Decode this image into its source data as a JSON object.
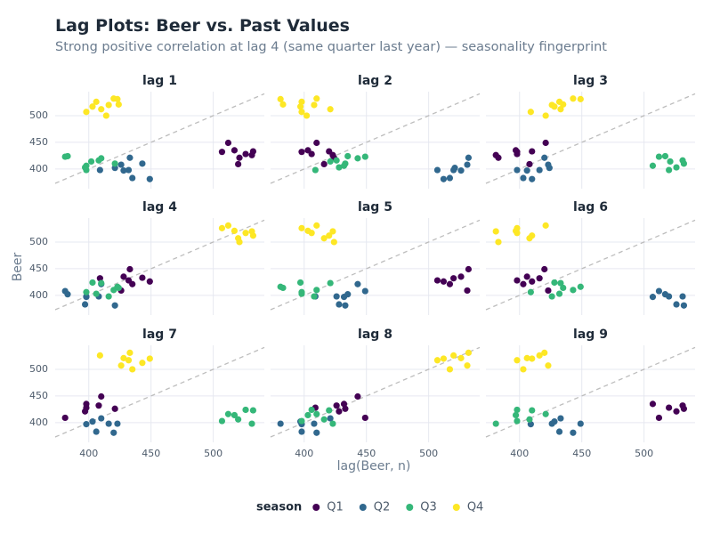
{
  "title": "Lag Plots: Beer vs. Past Values",
  "subtitle": "Strong positive correlation at lag 4 (same quarter last year) — seasonality fingerprint",
  "x_label": "lag(Beer, n)",
  "y_label": "Beer",
  "legend": {
    "title": "season",
    "position": "bottom"
  },
  "chart_data": [
    {
      "type": "scatter",
      "title": "lag 1",
      "xlim": [
        373,
        541
      ],
      "ylim": [
        363,
        545
      ],
      "xticks": [
        400,
        450,
        500
      ],
      "yticks": [
        400,
        450,
        500
      ],
      "grid": true,
      "series": [
        {
          "name": "Q1",
          "color": "#440154",
          "x": [
            532,
            512,
            531,
            520,
            507,
            526,
            517,
            521
          ],
          "values": [
            433,
            449,
            426,
            409,
            432,
            428,
            435,
            421
          ]
        },
        {
          "name": "Q2",
          "color": "#31688e",
          "x": [
            443,
            433,
            449,
            426,
            409,
            432,
            428,
            435,
            421
          ],
          "values": [
            410,
            421,
            381,
            408,
            398,
            398,
            397,
            383,
            402
          ]
        },
        {
          "name": "Q3",
          "color": "#35b779",
          "x": [
            410,
            421,
            381,
            408,
            398,
            398,
            397,
            383,
            402
          ],
          "values": [
            420,
            410,
            423,
            416,
            398,
            406,
            403,
            424,
            414
          ]
        },
        {
          "name": "Q4",
          "color": "#fde725",
          "x": [
            420,
            410,
            423,
            416,
            398,
            406,
            403,
            424,
            414
          ],
          "values": [
            532,
            512,
            531,
            520,
            507,
            526,
            517,
            521,
            500
          ]
        }
      ]
    },
    {
      "type": "scatter",
      "title": "lag 2",
      "xlim": [
        373,
        541
      ],
      "ylim": [
        363,
        545
      ],
      "xticks": [
        400,
        450,
        500
      ],
      "yticks": [
        400,
        450,
        500
      ],
      "grid": true,
      "series": [
        {
          "name": "Q1",
          "color": "#440154",
          "x": [
            420,
            410,
            423,
            416,
            398,
            406,
            403,
            424
          ],
          "values": [
            433,
            449,
            426,
            409,
            432,
            428,
            435,
            421
          ]
        },
        {
          "name": "Q2",
          "color": "#31688e",
          "x": [
            532,
            512,
            531,
            520,
            507,
            526,
            517,
            521
          ],
          "values": [
            421,
            381,
            408,
            398,
            398,
            397,
            383,
            402
          ]
        },
        {
          "name": "Q3",
          "color": "#35b779",
          "x": [
            443,
            433,
            449,
            426,
            409,
            432,
            428,
            435,
            421
          ],
          "values": [
            420,
            410,
            423,
            416,
            398,
            406,
            403,
            424,
            414
          ]
        },
        {
          "name": "Q4",
          "color": "#fde725",
          "x": [
            410,
            421,
            381,
            408,
            398,
            398,
            397,
            383,
            402
          ],
          "values": [
            532,
            512,
            531,
            520,
            507,
            526,
            517,
            521,
            500
          ]
        }
      ]
    },
    {
      "type": "scatter",
      "title": "lag 3",
      "xlim": [
        373,
        541
      ],
      "ylim": [
        363,
        545
      ],
      "xticks": [
        400,
        450,
        500
      ],
      "yticks": [
        400,
        450,
        500
      ],
      "grid": true,
      "series": [
        {
          "name": "Q1",
          "color": "#440154",
          "x": [
            410,
            421,
            381,
            408,
            398,
            398,
            397,
            383
          ],
          "values": [
            433,
            449,
            426,
            409,
            432,
            428,
            435,
            421
          ]
        },
        {
          "name": "Q2",
          "color": "#31688e",
          "x": [
            420,
            410,
            423,
            416,
            398,
            406,
            403,
            424
          ],
          "values": [
            421,
            381,
            408,
            398,
            398,
            397,
            383,
            402
          ]
        },
        {
          "name": "Q3",
          "color": "#35b779",
          "x": [
            532,
            512,
            531,
            520,
            507,
            526,
            517,
            521
          ],
          "values": [
            410,
            423,
            416,
            398,
            406,
            403,
            424,
            414
          ]
        },
        {
          "name": "Q4",
          "color": "#fde725",
          "x": [
            443,
            433,
            449,
            426,
            409,
            432,
            428,
            435,
            421
          ],
          "values": [
            532,
            512,
            531,
            520,
            507,
            526,
            517,
            521,
            500
          ]
        }
      ]
    },
    {
      "type": "scatter",
      "title": "lag 4",
      "xlim": [
        373,
        541
      ],
      "ylim": [
        363,
        545
      ],
      "xticks": [
        400,
        450,
        500
      ],
      "yticks": [
        400,
        450,
        500
      ],
      "grid": true,
      "series": [
        {
          "name": "Q1",
          "color": "#440154",
          "x": [
            443,
            433,
            449,
            426,
            409,
            432,
            428,
            435
          ],
          "values": [
            433,
            449,
            426,
            409,
            432,
            428,
            435,
            421
          ]
        },
        {
          "name": "Q2",
          "color": "#31688e",
          "x": [
            410,
            421,
            381,
            408,
            398,
            398,
            397,
            383
          ],
          "values": [
            421,
            381,
            408,
            398,
            398,
            397,
            383,
            402
          ]
        },
        {
          "name": "Q3",
          "color": "#35b779",
          "x": [
            420,
            410,
            423,
            416,
            398,
            406,
            403,
            424
          ],
          "values": [
            410,
            423,
            416,
            398,
            406,
            403,
            424,
            414
          ]
        },
        {
          "name": "Q4",
          "color": "#fde725",
          "x": [
            532,
            512,
            531,
            520,
            507,
            526,
            517,
            521
          ],
          "values": [
            512,
            531,
            520,
            507,
            526,
            517,
            521,
            500
          ]
        }
      ]
    },
    {
      "type": "scatter",
      "title": "lag 5",
      "xlim": [
        373,
        541
      ],
      "ylim": [
        363,
        545
      ],
      "xticks": [
        400,
        450,
        500
      ],
      "yticks": [
        400,
        450,
        500
      ],
      "grid": true,
      "series": [
        {
          "name": "Q1",
          "color": "#440154",
          "x": [
            532,
            512,
            531,
            520,
            507,
            526,
            517
          ],
          "values": [
            449,
            426,
            409,
            432,
            428,
            435,
            421
          ]
        },
        {
          "name": "Q2",
          "color": "#31688e",
          "x": [
            443,
            433,
            449,
            426,
            409,
            432,
            428,
            435
          ],
          "values": [
            421,
            381,
            408,
            398,
            398,
            397,
            383,
            402
          ]
        },
        {
          "name": "Q3",
          "color": "#35b779",
          "x": [
            410,
            421,
            381,
            408,
            398,
            398,
            397,
            383
          ],
          "values": [
            410,
            423,
            416,
            398,
            406,
            403,
            424,
            414
          ]
        },
        {
          "name": "Q4",
          "color": "#fde725",
          "x": [
            420,
            410,
            423,
            416,
            398,
            406,
            403,
            424
          ],
          "values": [
            512,
            531,
            520,
            507,
            526,
            517,
            521,
            500
          ]
        }
      ]
    },
    {
      "type": "scatter",
      "title": "lag 6",
      "xlim": [
        373,
        541
      ],
      "ylim": [
        363,
        545
      ],
      "xticks": [
        400,
        450,
        500
      ],
      "yticks": [
        400,
        450,
        500
      ],
      "grid": true,
      "series": [
        {
          "name": "Q1",
          "color": "#440154",
          "x": [
            420,
            410,
            423,
            416,
            398,
            406,
            403
          ],
          "values": [
            449,
            426,
            409,
            432,
            428,
            435,
            421
          ]
        },
        {
          "name": "Q2",
          "color": "#31688e",
          "x": [
            532,
            512,
            531,
            520,
            507,
            526,
            517
          ],
          "values": [
            381,
            408,
            398,
            398,
            397,
            383,
            402
          ]
        },
        {
          "name": "Q3",
          "color": "#35b779",
          "x": [
            443,
            433,
            449,
            426,
            409,
            432,
            428,
            435
          ],
          "values": [
            410,
            423,
            416,
            398,
            406,
            403,
            424,
            414
          ]
        },
        {
          "name": "Q4",
          "color": "#fde725",
          "x": [
            410,
            421,
            381,
            408,
            398,
            398,
            397,
            383
          ],
          "values": [
            512,
            531,
            520,
            507,
            526,
            517,
            521,
            500
          ]
        }
      ]
    },
    {
      "type": "scatter",
      "title": "lag 7",
      "xlim": [
        373,
        541
      ],
      "ylim": [
        363,
        545
      ],
      "xticks": [
        400,
        450,
        500
      ],
      "yticks": [
        400,
        450,
        500
      ],
      "grid": true,
      "series": [
        {
          "name": "Q1",
          "color": "#440154",
          "x": [
            410,
            421,
            381,
            408,
            398,
            398,
            397
          ],
          "values": [
            449,
            426,
            409,
            432,
            428,
            435,
            421
          ]
        },
        {
          "name": "Q2",
          "color": "#31688e",
          "x": [
            420,
            410,
            423,
            416,
            398,
            406,
            403
          ],
          "values": [
            381,
            408,
            398,
            398,
            397,
            383,
            402
          ]
        },
        {
          "name": "Q3",
          "color": "#35b779",
          "x": [
            532,
            512,
            531,
            520,
            507,
            526,
            517
          ],
          "values": [
            423,
            416,
            398,
            406,
            403,
            424,
            414
          ]
        },
        {
          "name": "Q4",
          "color": "#fde725",
          "x": [
            443,
            433,
            449,
            426,
            409,
            432,
            428,
            435
          ],
          "values": [
            512,
            531,
            520,
            507,
            526,
            517,
            521,
            500
          ]
        }
      ]
    },
    {
      "type": "scatter",
      "title": "lag 8",
      "xlim": [
        373,
        541
      ],
      "ylim": [
        363,
        545
      ],
      "xticks": [
        400,
        450,
        500
      ],
      "yticks": [
        400,
        450,
        500
      ],
      "grid": true,
      "series": [
        {
          "name": "Q1",
          "color": "#440154",
          "x": [
            443,
            433,
            449,
            426,
            409,
            432,
            428
          ],
          "values": [
            449,
            426,
            409,
            432,
            428,
            435,
            421
          ]
        },
        {
          "name": "Q2",
          "color": "#31688e",
          "x": [
            410,
            421,
            381,
            408,
            398,
            398,
            397
          ],
          "values": [
            381,
            408,
            398,
            398,
            397,
            383,
            402
          ]
        },
        {
          "name": "Q3",
          "color": "#35b779",
          "x": [
            420,
            410,
            423,
            416,
            398,
            406,
            403
          ],
          "values": [
            423,
            416,
            398,
            406,
            403,
            424,
            414
          ]
        },
        {
          "name": "Q4",
          "color": "#fde725",
          "x": [
            532,
            512,
            531,
            520,
            507,
            526,
            517
          ],
          "values": [
            531,
            520,
            507,
            526,
            517,
            521,
            500
          ]
        }
      ]
    },
    {
      "type": "scatter",
      "title": "lag 9",
      "xlim": [
        373,
        541
      ],
      "ylim": [
        363,
        545
      ],
      "xticks": [
        400,
        450,
        500
      ],
      "yticks": [
        400,
        450,
        500
      ],
      "grid": true,
      "series": [
        {
          "name": "Q1",
          "color": "#440154",
          "x": [
            532,
            512,
            531,
            520,
            507,
            526
          ],
          "values": [
            426,
            409,
            432,
            428,
            435,
            421
          ]
        },
        {
          "name": "Q2",
          "color": "#31688e",
          "x": [
            443,
            433,
            449,
            426,
            409,
            432,
            428
          ],
          "values": [
            381,
            408,
            398,
            398,
            397,
            383,
            402
          ]
        },
        {
          "name": "Q3",
          "color": "#35b779",
          "x": [
            410,
            421,
            381,
            408,
            398,
            398,
            397
          ],
          "values": [
            423,
            416,
            398,
            406,
            403,
            424,
            414
          ]
        },
        {
          "name": "Q4",
          "color": "#fde725",
          "x": [
            420,
            410,
            423,
            416,
            398,
            406,
            403
          ],
          "values": [
            531,
            520,
            507,
            526,
            517,
            521,
            500
          ]
        }
      ]
    }
  ]
}
